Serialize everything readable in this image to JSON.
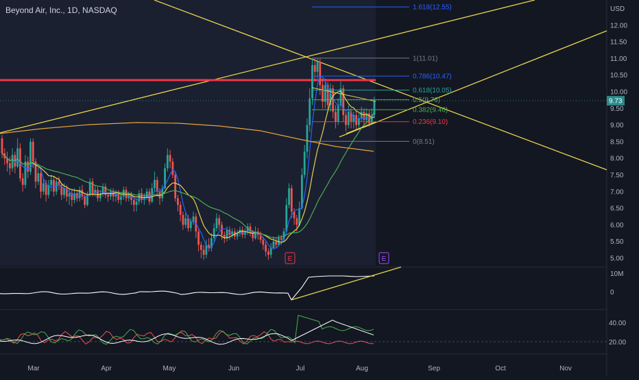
{
  "header": {
    "title": "Beyond Air, Inc., 1D, NASDAQ",
    "currency": "USD"
  },
  "colors": {
    "bg": "#131722",
    "highlight": "#1a2030",
    "up": "#26a69a",
    "down": "#ef5350",
    "yellow": "#e8d44d",
    "orange": "#e8a43a",
    "green": "#4caf50",
    "blue": "#2962ff",
    "red_level": "#f23645",
    "grid": "#2a2e39",
    "axis_text": "#b2b5be",
    "current_price_bg": "#2b8a8a"
  },
  "price_axis": {
    "labels": [
      "12.00",
      "11.50",
      "11.00",
      "10.50",
      "10.00",
      "9.50",
      "9.00",
      "8.50",
      "8.00",
      "7.50",
      "7.00",
      "6.50",
      "6.00",
      "5.50",
      "5.00"
    ],
    "current": "9.73"
  },
  "time_axis": {
    "labels": [
      "Mar",
      "Apr",
      "May",
      "Jun",
      "Jul",
      "Aug",
      "Sep",
      "Oct",
      "Nov"
    ]
  },
  "volume_axis": {
    "labels": [
      "10M",
      "0"
    ]
  },
  "indicator_axis": {
    "labels": [
      "40.00",
      "20.00"
    ]
  },
  "earnings": [
    "E",
    "E"
  ],
  "fib": {
    "levels": [
      {
        "label": "1.618(12.55)",
        "price": 12.55,
        "color": "#2962ff"
      },
      {
        "label": "1(11.01)",
        "price": 11.01,
        "color": "#787b86"
      },
      {
        "label": "0.786(10.47)",
        "price": 10.47,
        "color": "#2962ff"
      },
      {
        "label": "0.618(10.05)",
        "price": 10.05,
        "color": "#26a69a"
      },
      {
        "label": "0.5(9.76)",
        "price": 9.76,
        "color": "#4caf50"
      },
      {
        "label": "0.382(9.46)",
        "price": 9.46,
        "color": "#4caf50"
      },
      {
        "label": "0.236(9.10)",
        "price": 9.1,
        "color": "#f23645"
      },
      {
        "label": "0(8.51)",
        "price": 8.51,
        "color": "#787b86"
      }
    ]
  },
  "chart_data": {
    "type": "candlestick",
    "ylim": [
      4.8,
      12.8
    ],
    "candles": [
      [
        8.6,
        8.15,
        8.7,
        8.0
      ],
      [
        8.15,
        8.0,
        8.3,
        7.8
      ],
      [
        8.0,
        7.85,
        8.2,
        7.6
      ],
      [
        7.85,
        7.7,
        8.05,
        7.5
      ],
      [
        7.7,
        8.1,
        8.3,
        7.6
      ],
      [
        8.1,
        7.75,
        8.2,
        7.55
      ],
      [
        7.75,
        8.3,
        8.6,
        7.7
      ],
      [
        8.3,
        7.4,
        8.45,
        7.3
      ],
      [
        7.4,
        7.2,
        7.55,
        7.0
      ],
      [
        7.2,
        7.9,
        8.1,
        7.1
      ],
      [
        7.9,
        7.6,
        8.05,
        7.4
      ],
      [
        7.6,
        8.5,
        8.6,
        7.5
      ],
      [
        8.5,
        7.9,
        8.6,
        7.7
      ],
      [
        7.9,
        7.3,
        8.0,
        7.1
      ],
      [
        7.3,
        7.55,
        7.75,
        7.2
      ],
      [
        7.55,
        7.0,
        7.7,
        6.8
      ],
      [
        7.0,
        7.25,
        7.4,
        6.9
      ],
      [
        7.25,
        6.9,
        7.35,
        6.7
      ],
      [
        6.9,
        7.2,
        7.35,
        6.8
      ],
      [
        7.2,
        7.35,
        7.5,
        7.0
      ],
      [
        7.35,
        7.0,
        7.45,
        6.85
      ],
      [
        7.0,
        7.3,
        7.4,
        6.9
      ],
      [
        7.3,
        7.2,
        7.45,
        7.05
      ],
      [
        7.2,
        6.9,
        7.25,
        6.75
      ],
      [
        6.9,
        7.1,
        7.25,
        6.8
      ],
      [
        7.1,
        6.85,
        7.2,
        6.7
      ],
      [
        6.85,
        6.95,
        7.1,
        6.6
      ],
      [
        6.95,
        6.75,
        7.05,
        6.55
      ],
      [
        6.75,
        6.95,
        7.1,
        6.65
      ],
      [
        6.95,
        6.8,
        7.05,
        6.7
      ],
      [
        6.8,
        7.05,
        7.15,
        6.7
      ],
      [
        7.05,
        6.85,
        7.2,
        6.75
      ],
      [
        6.85,
        6.6,
        6.95,
        6.5
      ],
      [
        6.6,
        6.9,
        7.0,
        6.55
      ],
      [
        6.9,
        7.3,
        7.4,
        6.85
      ],
      [
        7.3,
        6.95,
        7.4,
        6.85
      ],
      [
        6.95,
        7.05,
        7.2,
        6.85
      ],
      [
        7.05,
        6.8,
        7.15,
        6.7
      ],
      [
        6.8,
        6.95,
        7.05,
        6.7
      ],
      [
        6.95,
        7.15,
        7.25,
        6.85
      ],
      [
        7.15,
        6.9,
        7.25,
        6.8
      ],
      [
        6.9,
        6.85,
        7.0,
        6.7
      ],
      [
        6.85,
        7.0,
        7.1,
        6.75
      ],
      [
        7.0,
        6.85,
        7.1,
        6.7
      ],
      [
        6.85,
        6.95,
        7.05,
        6.7
      ],
      [
        6.95,
        6.75,
        7.05,
        6.65
      ],
      [
        6.75,
        6.85,
        6.95,
        6.6
      ],
      [
        6.85,
        7.05,
        7.15,
        6.75
      ],
      [
        7.05,
        6.8,
        7.15,
        6.7
      ],
      [
        6.8,
        6.9,
        7.0,
        6.7
      ],
      [
        6.9,
        6.75,
        7.0,
        6.6
      ],
      [
        6.75,
        6.6,
        6.85,
        6.4
      ],
      [
        6.6,
        6.7,
        6.8,
        6.4
      ],
      [
        6.7,
        6.95,
        7.05,
        6.6
      ],
      [
        6.95,
        6.75,
        7.1,
        6.65
      ],
      [
        6.75,
        6.85,
        6.95,
        6.6
      ],
      [
        6.85,
        7.0,
        7.1,
        6.75
      ],
      [
        7.0,
        6.7,
        7.1,
        6.6
      ],
      [
        6.7,
        7.1,
        7.25,
        6.65
      ],
      [
        7.1,
        7.35,
        7.6,
        7.0
      ],
      [
        7.35,
        7.0,
        7.45,
        6.85
      ],
      [
        7.0,
        6.8,
        7.1,
        6.6
      ],
      [
        6.8,
        7.1,
        7.2,
        6.7
      ],
      [
        7.1,
        7.7,
        7.85,
        7.05
      ],
      [
        7.7,
        8.1,
        8.3,
        7.6
      ],
      [
        8.1,
        7.9,
        8.25,
        7.7
      ],
      [
        7.9,
        7.5,
        8.0,
        7.4
      ],
      [
        7.5,
        6.8,
        7.6,
        6.7
      ],
      [
        6.8,
        6.6,
        6.9,
        6.4
      ],
      [
        6.6,
        6.3,
        6.7,
        6.1
      ],
      [
        6.3,
        6.0,
        6.4,
        5.85
      ],
      [
        6.0,
        6.2,
        6.35,
        5.9
      ],
      [
        6.2,
        5.9,
        6.3,
        5.8
      ],
      [
        5.9,
        6.1,
        6.2,
        5.8
      ],
      [
        6.1,
        6.25,
        6.4,
        6.0
      ],
      [
        6.25,
        5.8,
        6.35,
        5.6
      ],
      [
        5.8,
        5.4,
        5.9,
        5.2
      ],
      [
        5.4,
        5.25,
        5.5,
        5.0
      ],
      [
        5.25,
        5.1,
        5.4,
        4.95
      ],
      [
        5.1,
        5.4,
        5.55,
        5.0
      ],
      [
        5.4,
        5.3,
        5.6,
        5.2
      ],
      [
        5.3,
        5.6,
        5.75,
        5.2
      ],
      [
        5.6,
        5.9,
        6.05,
        5.5
      ],
      [
        5.9,
        6.2,
        6.35,
        5.8
      ],
      [
        6.2,
        6.0,
        6.3,
        5.85
      ],
      [
        6.0,
        5.7,
        6.1,
        5.55
      ],
      [
        5.7,
        5.6,
        5.8,
        5.45
      ],
      [
        5.6,
        5.85,
        5.95,
        5.5
      ],
      [
        5.85,
        5.7,
        5.95,
        5.55
      ],
      [
        5.7,
        5.8,
        5.9,
        5.6
      ],
      [
        5.8,
        5.65,
        5.9,
        5.55
      ],
      [
        5.65,
        5.75,
        5.85,
        5.55
      ],
      [
        5.75,
        5.85,
        5.95,
        5.65
      ],
      [
        5.85,
        5.7,
        5.95,
        5.6
      ],
      [
        5.7,
        5.8,
        5.9,
        5.6
      ],
      [
        5.8,
        5.95,
        6.05,
        5.7
      ],
      [
        5.95,
        5.75,
        6.05,
        5.65
      ],
      [
        5.75,
        5.6,
        5.85,
        5.5
      ],
      [
        5.6,
        5.8,
        5.95,
        5.55
      ],
      [
        5.8,
        5.7,
        5.9,
        5.55
      ],
      [
        5.7,
        5.55,
        5.8,
        5.45
      ],
      [
        5.55,
        5.4,
        5.65,
        5.25
      ],
      [
        5.4,
        5.2,
        5.5,
        5.05
      ],
      [
        5.2,
        5.1,
        5.3,
        4.95
      ],
      [
        5.1,
        5.3,
        5.45,
        5.0
      ],
      [
        5.3,
        5.5,
        5.65,
        5.25
      ],
      [
        5.5,
        5.4,
        5.6,
        5.3
      ],
      [
        5.4,
        5.6,
        5.7,
        5.35
      ],
      [
        5.6,
        5.55,
        5.7,
        5.4
      ],
      [
        5.55,
        5.8,
        5.9,
        5.5
      ],
      [
        5.8,
        6.6,
        6.8,
        5.75
      ],
      [
        6.6,
        7.1,
        7.25,
        6.5
      ],
      [
        7.1,
        6.4,
        7.2,
        6.2
      ],
      [
        6.4,
        6.2,
        6.5,
        6.0
      ],
      [
        6.2,
        6.0,
        6.3,
        5.8
      ],
      [
        6.0,
        6.5,
        6.7,
        5.95
      ],
      [
        6.5,
        7.5,
        7.7,
        6.45
      ],
      [
        7.5,
        8.2,
        8.4,
        7.4
      ],
      [
        8.2,
        9.0,
        9.2,
        8.0
      ],
      [
        9.0,
        9.8,
        10.1,
        8.8
      ],
      [
        9.8,
        10.8,
        11.0,
        9.6
      ],
      [
        10.8,
        10.6,
        11.0,
        10.3
      ],
      [
        10.6,
        10.9,
        11.0,
        10.4
      ],
      [
        10.9,
        10.2,
        11.0,
        9.9
      ],
      [
        10.2,
        9.7,
        10.4,
        9.5
      ],
      [
        9.7,
        10.2,
        10.4,
        9.5
      ],
      [
        10.2,
        9.6,
        10.3,
        9.4
      ],
      [
        9.6,
        10.1,
        10.25,
        9.4
      ],
      [
        10.1,
        9.4,
        10.2,
        9.2
      ],
      [
        9.4,
        9.1,
        9.6,
        8.9
      ],
      [
        9.1,
        9.6,
        9.8,
        9.0
      ],
      [
        9.6,
        10.1,
        10.3,
        9.5
      ],
      [
        10.1,
        9.3,
        10.2,
        9.1
      ],
      [
        9.3,
        9.0,
        9.4,
        8.8
      ],
      [
        9.0,
        9.4,
        9.6,
        8.9
      ],
      [
        9.4,
        9.1,
        9.5,
        8.9
      ],
      [
        9.1,
        9.3,
        9.4,
        8.9
      ],
      [
        9.3,
        9.0,
        9.4,
        8.85
      ],
      [
        9.0,
        9.2,
        9.35,
        8.9
      ],
      [
        9.2,
        9.4,
        9.55,
        9.1
      ],
      [
        9.4,
        9.15,
        9.5,
        9.0
      ],
      [
        9.15,
        9.35,
        9.5,
        9.05
      ],
      [
        9.35,
        9.05,
        9.45,
        8.95
      ],
      [
        9.05,
        9.3,
        9.5,
        9.0
      ],
      [
        9.3,
        9.73,
        9.85,
        9.2
      ]
    ]
  }
}
